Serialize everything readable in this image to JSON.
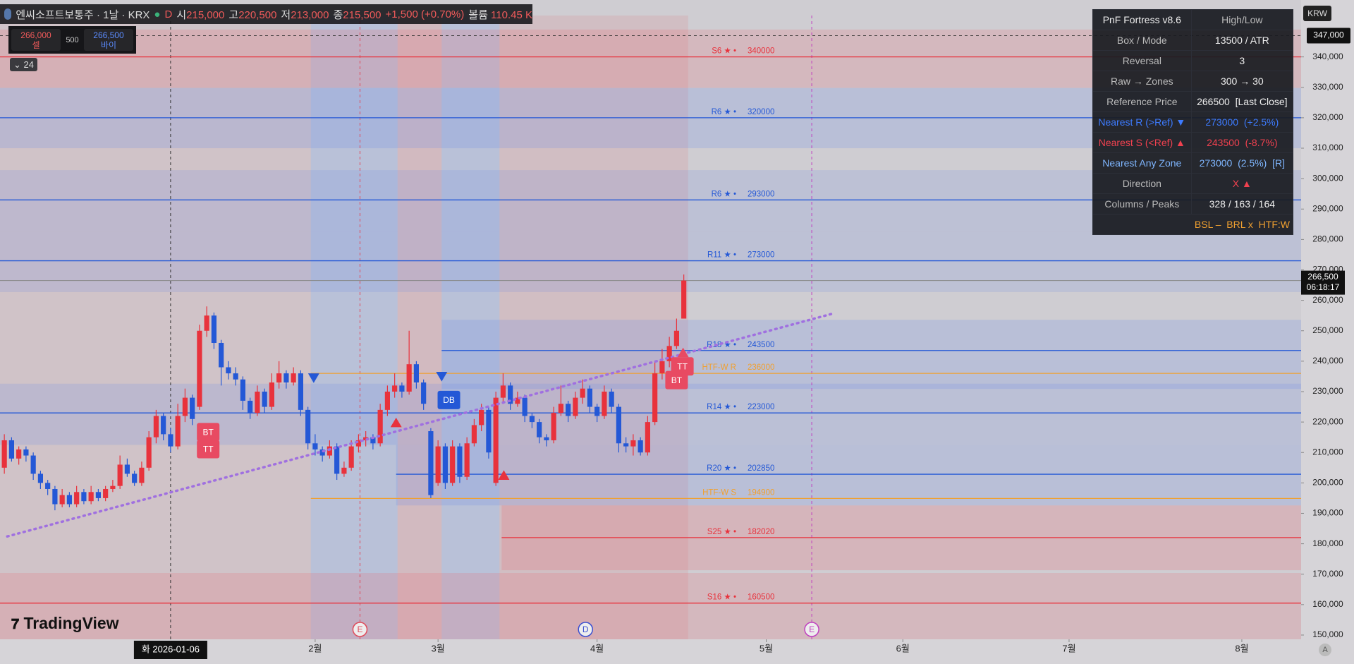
{
  "header": {
    "symbol": "엔씨소프트보통주 · 1날 · KRX",
    "mode": "D",
    "open_label": "시",
    "open": "215,000",
    "high_label": "고",
    "high": "220,500",
    "low_label": "저",
    "low": "213,000",
    "close_label": "종",
    "close": "215,500",
    "change": "+1,500 (+0.70%)",
    "volume_label": "볼륨",
    "volume": "110.45 K"
  },
  "order_box": {
    "sell_price": "266,000",
    "sell": "셀",
    "spread": "500",
    "buy_price": "266,500",
    "buy": "바이"
  },
  "indicator_count": "24",
  "currency": "KRW",
  "logo": "TradingView",
  "auto": "A",
  "panel": {
    "rows": [
      [
        "PnF Fortress v8.6",
        "High/Low"
      ],
      [
        "Box / Mode",
        "13500 / ATR"
      ],
      [
        "Reversal",
        "3"
      ],
      [
        "Raw → Zones",
        "300 → 30"
      ],
      [
        "Reference Price",
        "266500  [Last Close]"
      ],
      [
        "Nearest R (>Ref) ▼",
        "273000  (+2.5%)"
      ],
      [
        "Nearest S (<Ref) ▲",
        "243500  (-8.7%)"
      ],
      [
        "Nearest Any Zone",
        "273000  (2.5%)  [R]"
      ],
      [
        "Direction",
        "X ▲"
      ],
      [
        "Columns / Peaks",
        "328 / 163 / 164"
      ]
    ],
    "footer": "BSL –  BRL x  HTF:W"
  },
  "chart_data": {
    "type": "candlestick",
    "up_color": "#e8323c",
    "down_color": "#2458d6",
    "xlim": [
      -0.6,
      179.4
    ],
    "ylim": [
      148600,
      353600
    ],
    "xticks": [
      {
        "value": 43,
        "label": "2월"
      },
      {
        "value": 60,
        "label": "3월"
      },
      {
        "value": 82,
        "label": "4월"
      },
      {
        "value": 105.4,
        "label": "5월"
      },
      {
        "value": 124.3,
        "label": "6월"
      },
      {
        "value": 147.3,
        "label": "7월"
      },
      {
        "value": 171.2,
        "label": "8월"
      }
    ],
    "yticks": [
      {
        "value": 150000,
        "label": "150,000"
      },
      {
        "value": 160000,
        "label": "160,000"
      },
      {
        "value": 170000,
        "label": "170,000"
      },
      {
        "value": 180000,
        "label": "180,000"
      },
      {
        "value": 190000,
        "label": "190,000"
      },
      {
        "value": 200000,
        "label": "200,000"
      },
      {
        "value": 210000,
        "label": "210,000"
      },
      {
        "value": 220000,
        "label": "220,000"
      },
      {
        "value": 230000,
        "label": "230,000"
      },
      {
        "value": 240000,
        "label": "240,000"
      },
      {
        "value": 250000,
        "label": "250,000"
      },
      {
        "value": 260000,
        "label": "260,000"
      },
      {
        "value": 270000,
        "label": "270,000"
      },
      {
        "value": 280000,
        "label": "280,000"
      },
      {
        "value": 290000,
        "label": "290,000"
      },
      {
        "value": 300000,
        "label": "300,000"
      },
      {
        "value": 310000,
        "label": "310,000"
      },
      {
        "value": 320000,
        "label": "320,000"
      },
      {
        "value": 330000,
        "label": "330,000"
      },
      {
        "value": 340000,
        "label": "340,000"
      }
    ],
    "ohlc": [
      [
        205000,
        216000,
        203000,
        214000
      ],
      [
        214000,
        215000,
        207000,
        208000
      ],
      [
        208000,
        212000,
        206000,
        211000
      ],
      [
        211000,
        212000,
        207000,
        209000
      ],
      [
        209000,
        210000,
        201000,
        203000
      ],
      [
        203000,
        204000,
        198000,
        200000
      ],
      [
        200000,
        201000,
        196000,
        198000
      ],
      [
        198000,
        199000,
        191000,
        193000
      ],
      [
        193000,
        198000,
        192000,
        196000
      ],
      [
        196000,
        197000,
        192000,
        193000
      ],
      [
        193000,
        199000,
        192000,
        197000
      ],
      [
        197000,
        198000,
        193000,
        194000
      ],
      [
        194000,
        199000,
        193000,
        197000
      ],
      [
        197000,
        198000,
        194000,
        195000
      ],
      [
        195000,
        199000,
        194000,
        198000
      ],
      [
        198000,
        201000,
        197000,
        199000
      ],
      [
        199000,
        209000,
        198000,
        206000
      ],
      [
        206000,
        208000,
        202000,
        203000
      ],
      [
        203000,
        204000,
        199000,
        200000
      ],
      [
        200000,
        207000,
        199000,
        205000
      ],
      [
        205000,
        217000,
        204000,
        215000
      ],
      [
        215000,
        224000,
        213000,
        222000
      ],
      [
        222000,
        223000,
        214000,
        216000
      ],
      [
        216000,
        218000,
        210000,
        212000
      ],
      [
        212000,
        226000,
        211000,
        222000
      ],
      [
        222000,
        231000,
        220000,
        228000
      ],
      [
        228000,
        229000,
        219000,
        221000
      ],
      [
        225000,
        252000,
        224000,
        250000
      ],
      [
        250000,
        258000,
        248000,
        255000
      ],
      [
        255000,
        256000,
        244000,
        246000
      ],
      [
        246000,
        247000,
        232000,
        238000
      ],
      [
        238000,
        240000,
        234000,
        236000
      ],
      [
        236000,
        238000,
        232000,
        234000
      ],
      [
        234000,
        235000,
        224000,
        227000
      ],
      [
        227000,
        228000,
        221000,
        223000
      ],
      [
        223000,
        232000,
        222000,
        230000
      ],
      [
        230000,
        231000,
        223000,
        225000
      ],
      [
        225000,
        236000,
        224000,
        233000
      ],
      [
        233000,
        240000,
        231000,
        236000
      ],
      [
        236000,
        237000,
        231000,
        233000
      ],
      [
        233000,
        238000,
        232000,
        236000
      ],
      [
        236000,
        237000,
        222000,
        224000
      ],
      [
        224000,
        225000,
        211000,
        213000
      ],
      [
        213000,
        216000,
        209000,
        211000
      ],
      [
        211000,
        212000,
        207000,
        209000
      ],
      [
        209000,
        214000,
        208000,
        212000
      ],
      [
        212000,
        213000,
        201000,
        203000
      ],
      [
        203000,
        207000,
        202000,
        205000
      ],
      [
        205000,
        214000,
        204000,
        212000
      ],
      [
        212000,
        216000,
        210000,
        214000
      ],
      [
        214000,
        217000,
        212000,
        215000
      ],
      [
        215000,
        216000,
        211000,
        213000
      ],
      [
        213000,
        226000,
        212000,
        224000
      ],
      [
        224000,
        232000,
        222000,
        230000
      ],
      [
        230000,
        236000,
        228000,
        232000
      ],
      [
        232000,
        233000,
        228000,
        230000
      ],
      [
        230000,
        250000,
        229000,
        239000
      ],
      [
        239000,
        240000,
        231000,
        233000
      ],
      [
        233000,
        234000,
        224000,
        226000
      ],
      [
        217000,
        218000,
        195000,
        196000
      ],
      [
        200000,
        214000,
        199000,
        212000
      ],
      [
        212000,
        213000,
        198000,
        200000
      ],
      [
        200000,
        214000,
        199000,
        212000
      ],
      [
        212000,
        213000,
        200000,
        202000
      ],
      [
        202000,
        215000,
        201000,
        213000
      ],
      [
        213000,
        221000,
        212000,
        219000
      ],
      [
        219000,
        226000,
        217000,
        224000
      ],
      [
        224000,
        225000,
        208000,
        210000
      ],
      [
        200000,
        230000,
        199000,
        228000
      ],
      [
        228000,
        236000,
        226000,
        232000
      ],
      [
        232000,
        233000,
        224000,
        226000
      ],
      [
        226000,
        230000,
        225000,
        228000
      ],
      [
        228000,
        229000,
        220000,
        222000
      ],
      [
        222000,
        223000,
        218000,
        220000
      ],
      [
        220000,
        221000,
        213000,
        215000
      ],
      [
        215000,
        216000,
        212000,
        214000
      ],
      [
        214000,
        225000,
        213000,
        223000
      ],
      [
        223000,
        232000,
        222000,
        226000
      ],
      [
        226000,
        227000,
        220000,
        222000
      ],
      [
        222000,
        230000,
        221000,
        228000
      ],
      [
        228000,
        234000,
        226000,
        231000
      ],
      [
        231000,
        232000,
        223000,
        225000
      ],
      [
        225000,
        226000,
        220000,
        222000
      ],
      [
        222000,
        232000,
        221000,
        230000
      ],
      [
        230000,
        231000,
        223000,
        225000
      ],
      [
        225000,
        226000,
        210000,
        213000
      ],
      [
        213000,
        215000,
        210000,
        212000
      ],
      [
        212000,
        216000,
        209000,
        214000
      ],
      [
        214000,
        215000,
        209000,
        210000
      ],
      [
        210000,
        222000,
        209000,
        220000
      ],
      [
        220000,
        240000,
        219000,
        236000
      ],
      [
        236000,
        244000,
        234000,
        240000
      ],
      [
        240000,
        248000,
        238000,
        245000
      ],
      [
        245000,
        254000,
        244000,
        250000
      ],
      [
        254000,
        268500,
        254000,
        266500
      ]
    ],
    "sessions": [
      {
        "from": -0.6,
        "to": 42.4,
        "color": "rgba(225,120,130,0.12)"
      },
      {
        "from": 42.4,
        "to": 54.4,
        "color": "rgba(110,150,235,0.22)"
      },
      {
        "from": 54.4,
        "to": 60.5,
        "color": "rgba(225,110,120,0.2)"
      },
      {
        "from": 60.5,
        "to": 68.5,
        "color": "rgba(110,150,235,0.22)"
      },
      {
        "from": 68.5,
        "to": 94.6,
        "color": "rgba(225,110,120,0.16)"
      }
    ],
    "zones": [
      {
        "lo": 329800,
        "hi": 349000,
        "from": -0.6,
        "color": "rgba(230,110,120,0.22)"
      },
      {
        "lo": 310000,
        "hi": 329800,
        "from": -0.6,
        "color": "rgba(110,140,230,0.22)"
      },
      {
        "lo": 282600,
        "hi": 302800,
        "from": -0.6,
        "color": "rgba(110,140,230,0.18)"
      },
      {
        "lo": 262700,
        "hi": 282600,
        "from": -0.6,
        "color": "rgba(110,140,230,0.18)"
      },
      {
        "lo": 230900,
        "hi": 253600,
        "from": 60.5,
        "color": "rgba(110,140,230,0.22)"
      },
      {
        "lo": 212500,
        "hi": 232600,
        "from": -0.6,
        "color": "rgba(110,140,230,0.2)"
      },
      {
        "lo": 192600,
        "hi": 212500,
        "from": 54.2,
        "color": "rgba(110,140,230,0.22)"
      },
      {
        "lo": 171300,
        "hi": 192600,
        "from": 68.8,
        "color": "rgba(230,110,120,0.25)"
      },
      {
        "lo": 148600,
        "hi": 170400,
        "from": -0.6,
        "color": "rgba(230,110,120,0.22)"
      }
    ],
    "levels": [
      {
        "label": "S6 ★ •",
        "value": 340000,
        "from": -0.6,
        "color": "#e8323c"
      },
      {
        "label": "R6 ★ •",
        "value": 320000,
        "from": -0.6,
        "color": "#2458d6"
      },
      {
        "label": "R6 ★ •",
        "value": 293000,
        "from": -0.6,
        "color": "#2458d6"
      },
      {
        "label": "R11 ★ •",
        "value": 273000,
        "from": -0.6,
        "color": "#2458d6"
      },
      {
        "label": "R18 ★ •",
        "value": 243500,
        "from": 60.5,
        "color": "#2458d6"
      },
      {
        "label": "HTF-W R",
        "value": 236000,
        "from": 42.4,
        "color": "#f0a030"
      },
      {
        "label": "R14 ★ •",
        "value": 223000,
        "from": -0.6,
        "color": "#2458d6"
      },
      {
        "label": "R20 ★ •",
        "value": 202850,
        "from": 54.2,
        "color": "#2458d6"
      },
      {
        "label": "HTF-W S",
        "value": 194900,
        "from": 42.4,
        "color": "#f0a030"
      },
      {
        "label": "S25 ★ •",
        "value": 182020,
        "from": 68.8,
        "color": "#e8323c"
      },
      {
        "label": "S16 ★ •",
        "value": 160500,
        "from": -0.6,
        "color": "#e8323c"
      }
    ],
    "trendline": {
      "x": [
        0.4,
        114.7
      ],
      "y": [
        182400,
        255700
      ],
      "color": "#a070e0"
    },
    "annotations": [
      {
        "text": "BT",
        "x": 28.2,
        "y": 216700,
        "color": "#e84a62"
      },
      {
        "text": "TT",
        "x": 28.2,
        "y": 211100,
        "color": "#e84a62"
      },
      {
        "text": "DB",
        "x": 61.5,
        "y": 227250,
        "color": "#2458d6"
      },
      {
        "text": "BT",
        "x": 93,
        "y": 233800,
        "color": "#e84a62"
      },
      {
        "text": "TT",
        "x": 93.8,
        "y": 238300,
        "color": "#e84a62"
      }
    ],
    "triangles": [
      {
        "x": 54.2,
        "y": 219600,
        "dir": "up",
        "color": "#e8323c"
      },
      {
        "x": 69.1,
        "y": 202300,
        "dir": "up",
        "color": "#e8323c"
      },
      {
        "x": 93.9,
        "y": 242600,
        "dir": "up",
        "color": "#e84a62"
      },
      {
        "x": 42.8,
        "y": 234700,
        "dir": "down",
        "color": "#2458d6"
      },
      {
        "x": 60.5,
        "y": 235200,
        "dir": "down",
        "color": "#2458d6"
      }
    ],
    "events": [
      {
        "x": 49.2,
        "text": "E",
        "color": "#e04b5a"
      },
      {
        "x": 80.4,
        "text": "D",
        "color": "#3b4fd0"
      },
      {
        "x": 111.7,
        "text": "E",
        "color": "#c040c0"
      }
    ],
    "last_price": {
      "value": 266500,
      "label": "266,500",
      "countdown": "06:18:17"
    },
    "crosshair": {
      "x": 23,
      "x_label": "화 2026-01-06",
      "y": 347000,
      "y_label": "347,000"
    }
  }
}
